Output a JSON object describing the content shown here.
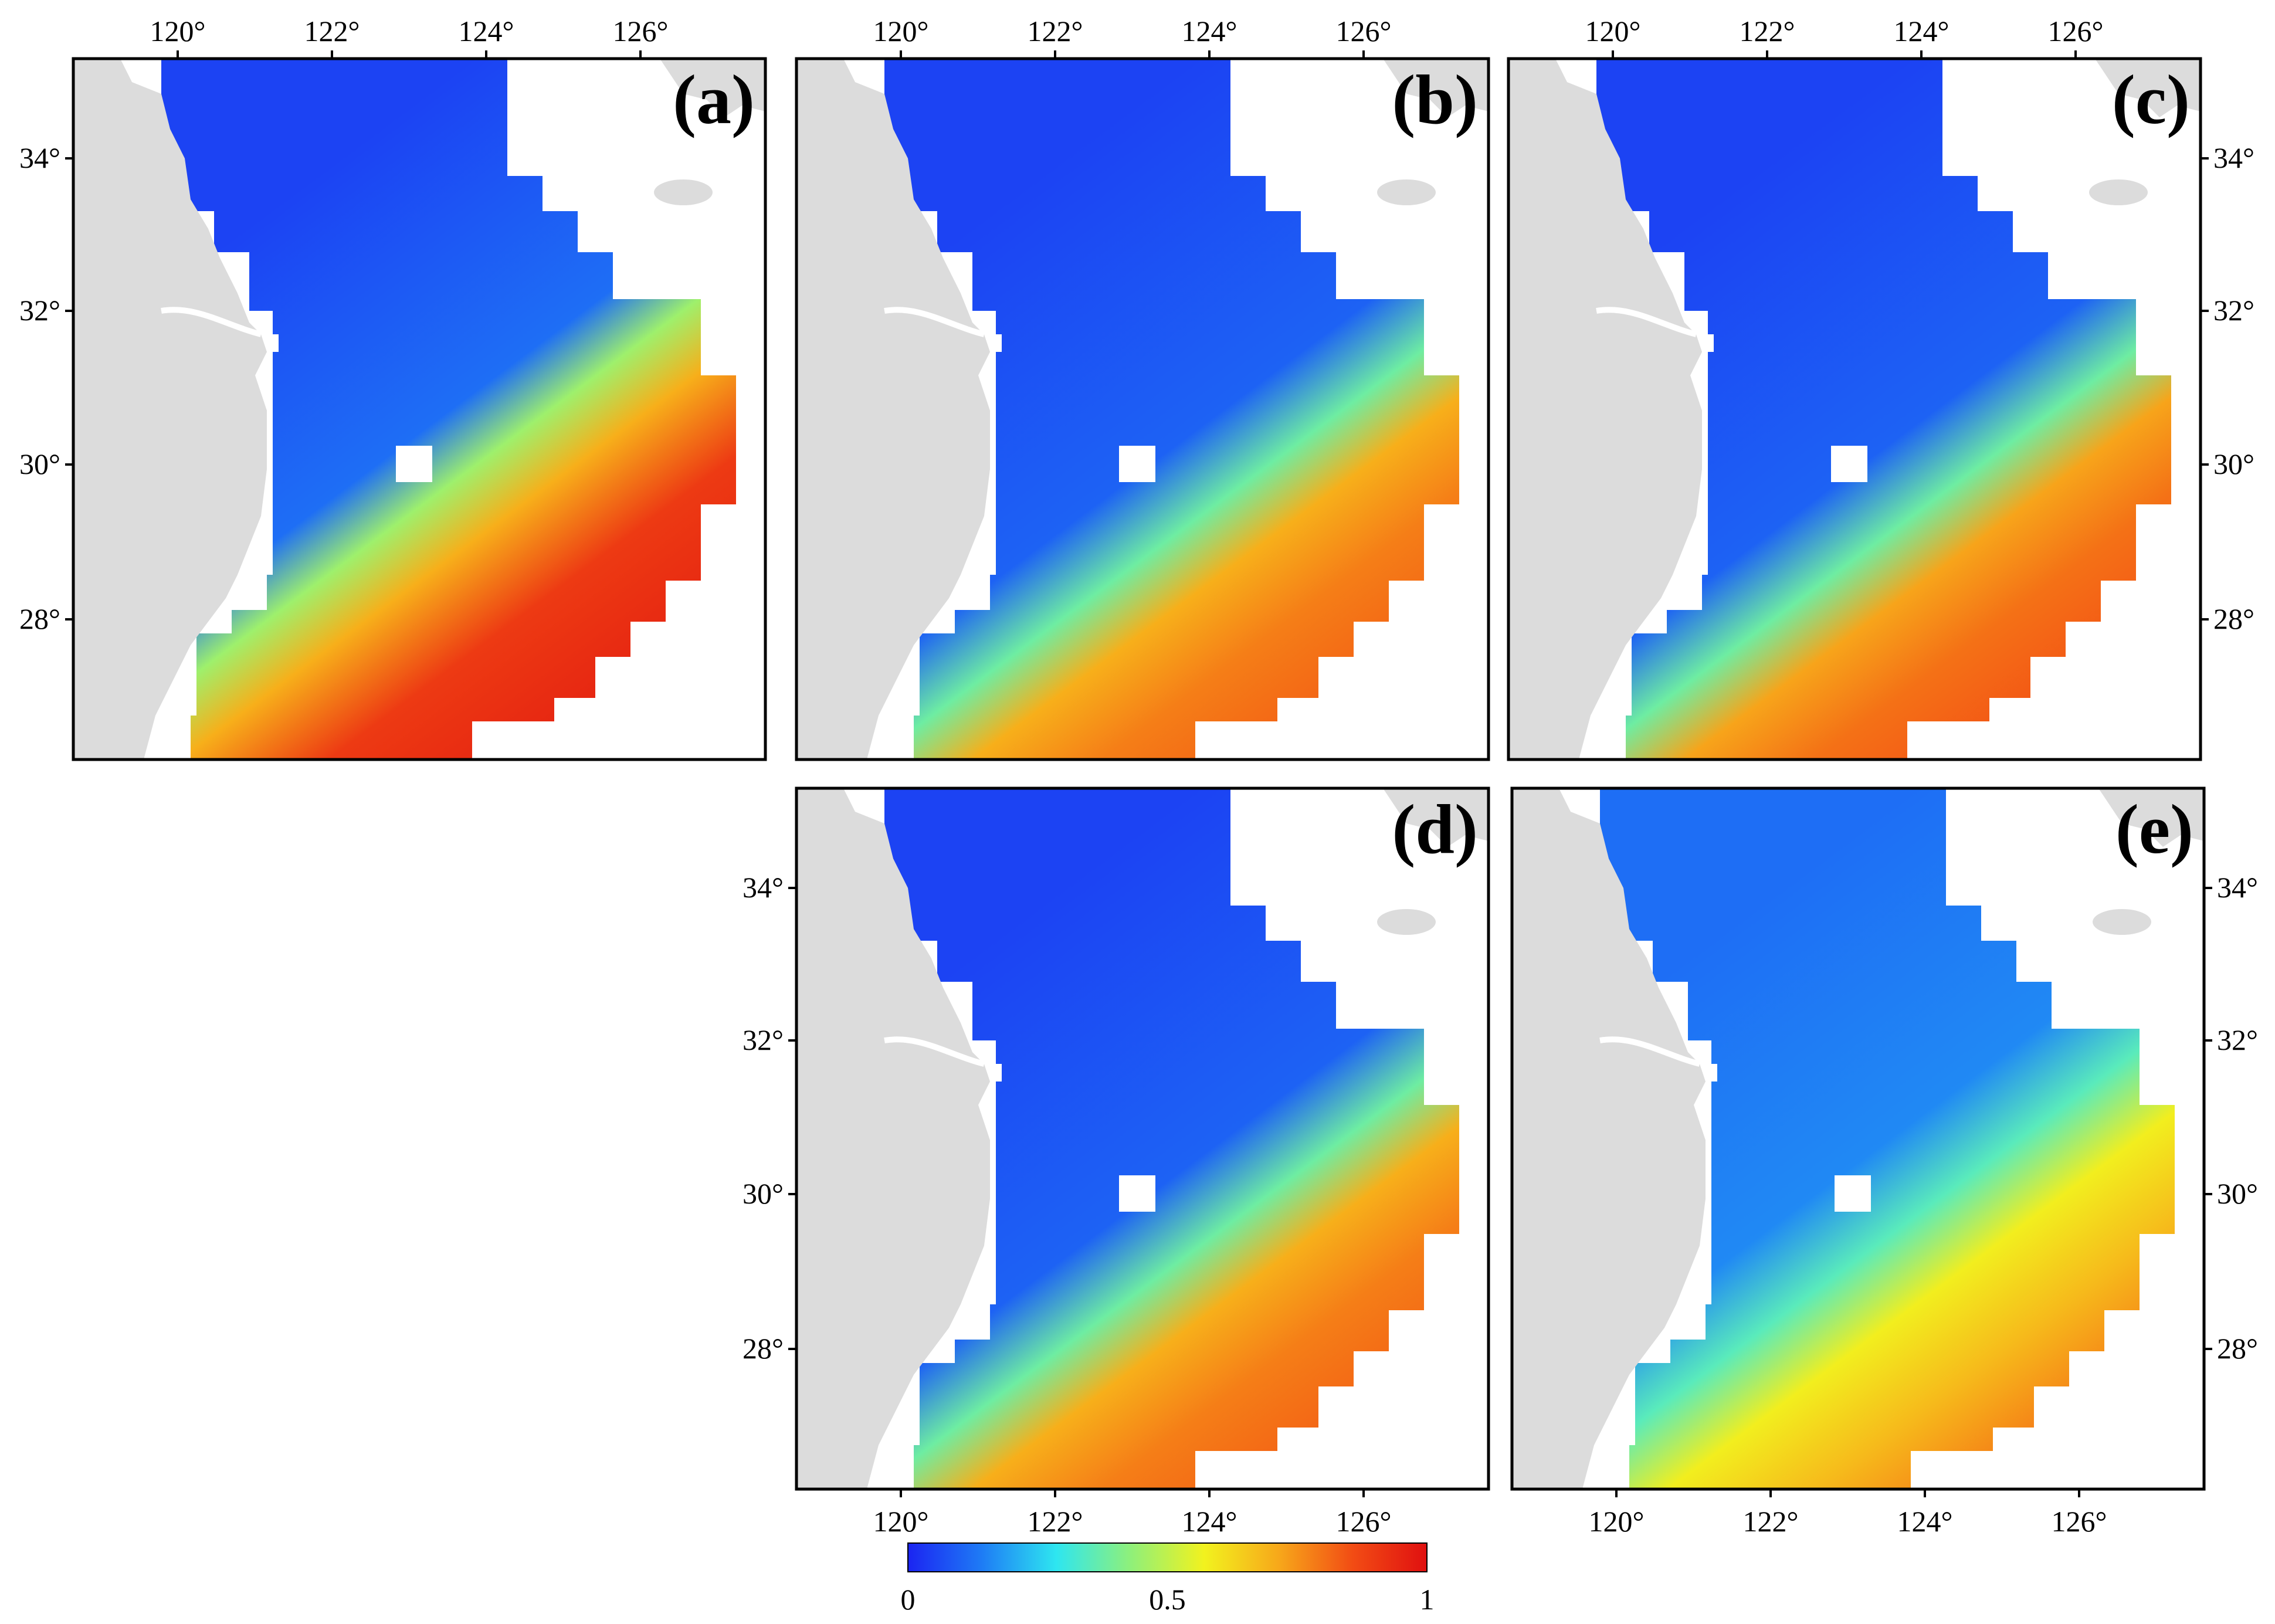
{
  "figure": {
    "lon_ticks": [
      "120°",
      "122°",
      "124°",
      "126°"
    ],
    "lat_ticks": [
      "34°",
      "32°",
      "30°",
      "28°"
    ],
    "panels": [
      {
        "label": "(a)",
        "variant": 0
      },
      {
        "label": "(b)",
        "variant": 1
      },
      {
        "label": "(c)",
        "variant": 2
      },
      {
        "label": "(d)",
        "variant": 3
      },
      {
        "label": "(e)",
        "variant": 4
      }
    ],
    "colorbar": {
      "tick_labels": [
        "0",
        "0.5",
        "1"
      ],
      "colors": [
        "#1b24f2",
        "#1e7cf5",
        "#2ee6f0",
        "#8ff07a",
        "#f2f21e",
        "#f7a81a",
        "#f24c14",
        "#e01010"
      ]
    },
    "colors": {
      "land": "#dcdcdc",
      "sea_low": "#1b24f2",
      "sea_high": "#e01010"
    }
  }
}
